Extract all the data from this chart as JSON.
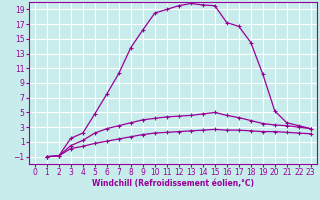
{
  "xlabel": "Windchill (Refroidissement éolien,°C)",
  "bg_color": "#c8ecec",
  "grid_color": "#ffffff",
  "line_color": "#990099",
  "spine_color": "#990099",
  "xlim": [
    -0.5,
    23.5
  ],
  "ylim": [
    -2.0,
    20.0
  ],
  "yticks": [
    -1,
    1,
    3,
    5,
    7,
    9,
    11,
    13,
    15,
    17,
    19
  ],
  "xticks": [
    0,
    1,
    2,
    3,
    4,
    5,
    6,
    7,
    8,
    9,
    10,
    11,
    12,
    13,
    14,
    15,
    16,
    17,
    18,
    19,
    20,
    21,
    22,
    23
  ],
  "line1_x": [
    1,
    2,
    3,
    4,
    5,
    6,
    7,
    8,
    9,
    10,
    11,
    12,
    13,
    14,
    15,
    16,
    17,
    18,
    19,
    20,
    21,
    22,
    23
  ],
  "line1_y": [
    -1,
    -0.9,
    1.5,
    2.2,
    4.8,
    7.5,
    10.3,
    13.8,
    16.2,
    18.5,
    19.0,
    19.5,
    19.8,
    19.6,
    19.5,
    17.2,
    16.7,
    14.5,
    10.2,
    5.2,
    3.6,
    3.2,
    2.8
  ],
  "line2_x": [
    1,
    2,
    3,
    4,
    5,
    6,
    7,
    8,
    9,
    10,
    11,
    12,
    13,
    14,
    15,
    16,
    17,
    18,
    19,
    20,
    21,
    22,
    23
  ],
  "line2_y": [
    -1,
    -0.9,
    0.5,
    1.2,
    2.2,
    2.8,
    3.2,
    3.6,
    4.0,
    4.2,
    4.4,
    4.5,
    4.6,
    4.8,
    5.0,
    4.6,
    4.3,
    3.9,
    3.5,
    3.3,
    3.2,
    3.0,
    2.8
  ],
  "line3_x": [
    1,
    2,
    3,
    4,
    5,
    6,
    7,
    8,
    9,
    10,
    11,
    12,
    13,
    14,
    15,
    16,
    17,
    18,
    19,
    20,
    21,
    22,
    23
  ],
  "line3_y": [
    -1,
    -0.9,
    0.1,
    0.4,
    0.8,
    1.1,
    1.4,
    1.7,
    2.0,
    2.2,
    2.3,
    2.4,
    2.5,
    2.6,
    2.7,
    2.6,
    2.6,
    2.5,
    2.4,
    2.4,
    2.3,
    2.2,
    2.1
  ],
  "tick_fontsize": 5.5,
  "xlabel_fontsize": 5.5
}
